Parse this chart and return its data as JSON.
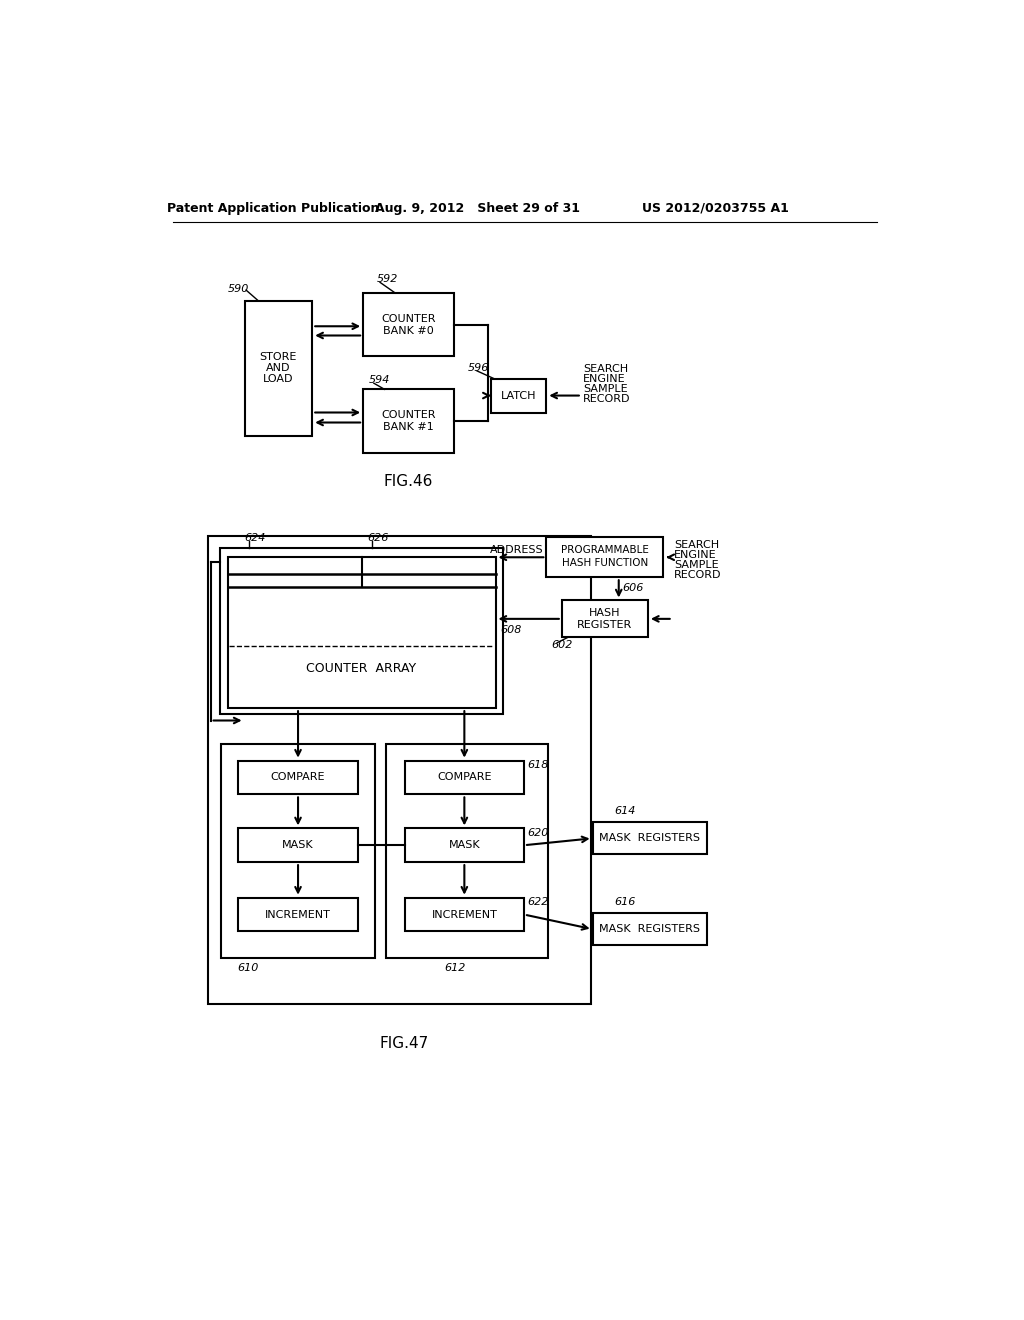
{
  "bg_color": "#ffffff",
  "header_left": "Patent Application Publication",
  "header_mid": "Aug. 9, 2012   Sheet 29 of 31",
  "header_right": "US 2012/0203755 A1",
  "fig46_label": "FIG.46",
  "fig47_label": "FIG.47"
}
